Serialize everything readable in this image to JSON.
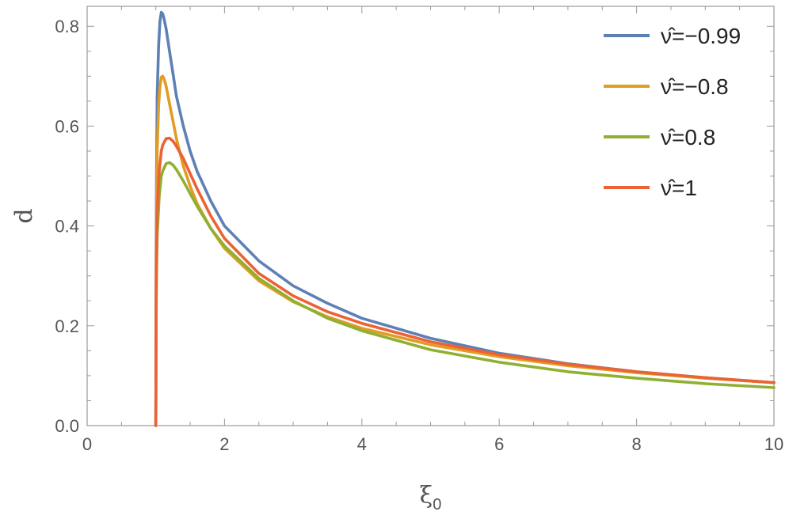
{
  "chart_data": {
    "type": "line",
    "title": "",
    "xlabel": "ξ",
    "xlabel_sub": "0",
    "ylabel": "d",
    "xlim": [
      0,
      10
    ],
    "ylim": [
      0,
      0.84
    ],
    "x_ticks": [
      0,
      2,
      4,
      6,
      8,
      10
    ],
    "x_tick_labels": [
      "0",
      "2",
      "4",
      "6",
      "8",
      "10"
    ],
    "y_ticks": [
      0.0,
      0.2,
      0.4,
      0.6,
      0.8
    ],
    "y_tick_labels": [
      "0.0",
      "0.2",
      "0.4",
      "0.6",
      "0.8"
    ],
    "grid": false,
    "legend_position": "top-right",
    "series": [
      {
        "name": "ν̂=−0.99",
        "color": "#5e81b5",
        "x": [
          1.0,
          1.005,
          1.01,
          1.02,
          1.04,
          1.06,
          1.08,
          1.1,
          1.12,
          1.15,
          1.2,
          1.25,
          1.3,
          1.4,
          1.5,
          1.6,
          1.8,
          2.0,
          2.5,
          3.0,
          3.5,
          4.0,
          5.0,
          6.0,
          7.0,
          8.0,
          9.0,
          10.0
        ],
        "y": [
          0.0,
          0.35,
          0.5,
          0.66,
          0.76,
          0.81,
          0.828,
          0.825,
          0.815,
          0.795,
          0.75,
          0.705,
          0.66,
          0.6,
          0.55,
          0.51,
          0.45,
          0.4,
          0.33,
          0.28,
          0.245,
          0.215,
          0.175,
          0.145,
          0.124,
          0.108,
          0.096,
          0.086
        ]
      },
      {
        "name": "ν̂=−0.8",
        "color": "#e19c24",
        "x": [
          1.0,
          1.005,
          1.01,
          1.02,
          1.04,
          1.06,
          1.08,
          1.1,
          1.12,
          1.15,
          1.2,
          1.25,
          1.3,
          1.4,
          1.5,
          1.6,
          1.8,
          2.0,
          2.5,
          3.0,
          3.5,
          4.0,
          5.0,
          6.0,
          7.0,
          8.0,
          9.0,
          10.0
        ],
        "y": [
          0.0,
          0.3,
          0.43,
          0.55,
          0.64,
          0.68,
          0.698,
          0.7,
          0.695,
          0.68,
          0.645,
          0.61,
          0.575,
          0.52,
          0.48,
          0.445,
          0.395,
          0.355,
          0.29,
          0.248,
          0.218,
          0.195,
          0.162,
          0.138,
          0.12,
          0.106,
          0.095,
          0.086
        ]
      },
      {
        "name": "ν̂=0.8",
        "color": "#8fb032",
        "x": [
          1.0,
          1.005,
          1.01,
          1.02,
          1.05,
          1.08,
          1.1,
          1.15,
          1.2,
          1.25,
          1.3,
          1.4,
          1.5,
          1.6,
          1.8,
          2.0,
          2.5,
          3.0,
          3.5,
          4.0,
          5.0,
          6.0,
          7.0,
          8.0,
          9.0,
          10.0
        ],
        "y": [
          0.0,
          0.22,
          0.3,
          0.38,
          0.46,
          0.5,
          0.51,
          0.525,
          0.527,
          0.522,
          0.513,
          0.49,
          0.465,
          0.44,
          0.395,
          0.36,
          0.295,
          0.25,
          0.215,
          0.19,
          0.152,
          0.127,
          0.108,
          0.095,
          0.084,
          0.076
        ]
      },
      {
        "name": "ν̂=1",
        "color": "#eb6235",
        "x": [
          1.0,
          1.005,
          1.01,
          1.02,
          1.05,
          1.08,
          1.1,
          1.15,
          1.2,
          1.25,
          1.3,
          1.4,
          1.5,
          1.6,
          1.8,
          2.0,
          2.5,
          3.0,
          3.5,
          4.0,
          5.0,
          6.0,
          7.0,
          8.0,
          9.0,
          10.0
        ],
        "y": [
          0.0,
          0.25,
          0.34,
          0.43,
          0.51,
          0.55,
          0.562,
          0.575,
          0.576,
          0.57,
          0.56,
          0.535,
          0.505,
          0.475,
          0.42,
          0.375,
          0.305,
          0.26,
          0.228,
          0.205,
          0.168,
          0.142,
          0.123,
          0.108,
          0.096,
          0.086
        ]
      }
    ]
  }
}
